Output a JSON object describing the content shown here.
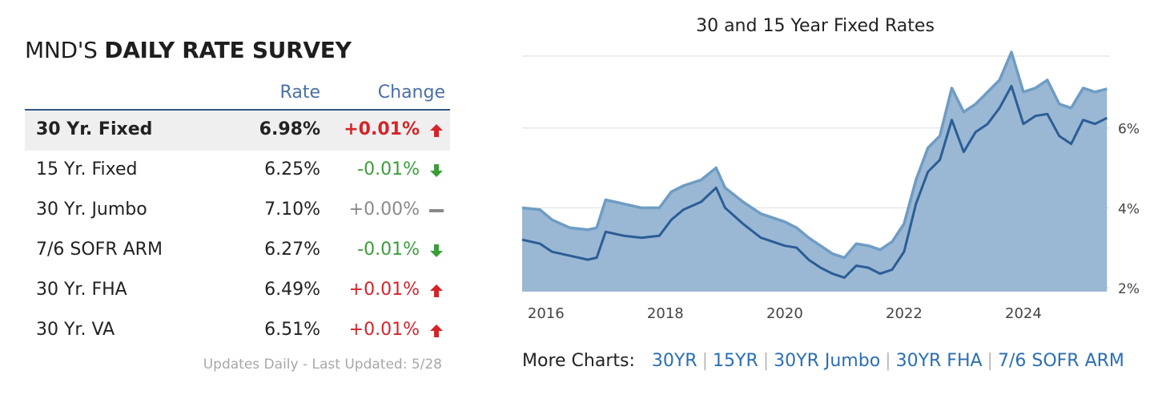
{
  "survey": {
    "title_prefix": "MND'S ",
    "title_bold": "DAILY RATE SURVEY",
    "col_rate": "Rate",
    "col_change": "Change",
    "rows": [
      {
        "name": "30 Yr. Fixed",
        "rate": "6.98%",
        "change": "+0.01%",
        "direction": "up"
      },
      {
        "name": "15 Yr. Fixed",
        "rate": "6.25%",
        "change": "-0.01%",
        "direction": "down"
      },
      {
        "name": "30 Yr. Jumbo",
        "rate": "7.10%",
        "change": "+0.00%",
        "direction": "flat"
      },
      {
        "name": "7/6 SOFR ARM",
        "rate": "6.27%",
        "change": "-0.01%",
        "direction": "down"
      },
      {
        "name": "30 Yr. FHA",
        "rate": "6.49%",
        "change": "+0.01%",
        "direction": "up"
      },
      {
        "name": "30 Yr. VA",
        "rate": "6.51%",
        "change": "+0.01%",
        "direction": "up"
      }
    ],
    "updated": "Updates Daily - Last Updated: 5/28"
  },
  "colors": {
    "up": "#d42429",
    "down": "#3a9d3a",
    "flat": "#8a8a8a",
    "header_accent": "#4a6fa8",
    "area_fill": "#9ab8d4",
    "line_30yr": "#6e9cc4",
    "line_15yr": "#2b5d96",
    "link": "#2a6fb5"
  },
  "icons": {
    "up": "arrow-up-icon",
    "down": "arrow-down-icon",
    "flat": "dash-icon"
  },
  "more_charts": {
    "label": "More Charts:",
    "links": [
      "30YR",
      "15YR",
      "30YR Jumbo",
      "30YR FHA",
      "7/6 SOFR ARM"
    ]
  },
  "chart_data": {
    "type": "area",
    "title": "30 and 15 Year Fixed Rates",
    "xlabel": "",
    "ylabel": "",
    "x_ticks": [
      2016,
      2018,
      2020,
      2022,
      2024
    ],
    "y_ticks": [
      "2%",
      "4%",
      "6%"
    ],
    "xlim": [
      2015.6,
      2025.45
    ],
    "ylim": [
      1.9,
      7.8
    ],
    "grid": true,
    "y_axis_side": "right",
    "series": [
      {
        "key": "30yr",
        "x": [
          2015.6,
          2015.9,
          2016.1,
          2016.4,
          2016.7,
          2016.85,
          2017.0,
          2017.3,
          2017.6,
          2017.9,
          2018.1,
          2018.3,
          2018.6,
          2018.85,
          2019.0,
          2019.3,
          2019.6,
          2019.8,
          2020.0,
          2020.2,
          2020.4,
          2020.6,
          2020.8,
          2021.0,
          2021.2,
          2021.4,
          2021.6,
          2021.8,
          2022.0,
          2022.2,
          2022.4,
          2022.6,
          2022.8,
          2023.0,
          2023.2,
          2023.4,
          2023.6,
          2023.8,
          2024.0,
          2024.2,
          2024.4,
          2024.6,
          2024.8,
          2025.0,
          2025.2,
          2025.4
        ],
        "values": [
          4.0,
          3.95,
          3.7,
          3.5,
          3.45,
          3.5,
          4.2,
          4.1,
          4.0,
          4.0,
          4.4,
          4.55,
          4.7,
          5.0,
          4.5,
          4.15,
          3.85,
          3.75,
          3.65,
          3.5,
          3.25,
          3.05,
          2.85,
          2.75,
          3.1,
          3.05,
          2.95,
          3.15,
          3.6,
          4.7,
          5.5,
          5.8,
          7.0,
          6.4,
          6.6,
          6.9,
          7.2,
          7.9,
          6.9,
          7.0,
          7.2,
          6.6,
          6.5,
          7.0,
          6.9,
          6.98
        ]
      },
      {
        "key": "15yr",
        "x": [
          2015.6,
          2015.9,
          2016.1,
          2016.4,
          2016.7,
          2016.85,
          2017.0,
          2017.3,
          2017.6,
          2017.9,
          2018.1,
          2018.3,
          2018.6,
          2018.85,
          2019.0,
          2019.3,
          2019.6,
          2019.8,
          2020.0,
          2020.2,
          2020.4,
          2020.6,
          2020.8,
          2021.0,
          2021.2,
          2021.4,
          2021.6,
          2021.8,
          2022.0,
          2022.2,
          2022.4,
          2022.6,
          2022.8,
          2023.0,
          2023.2,
          2023.4,
          2023.6,
          2023.8,
          2024.0,
          2024.2,
          2024.4,
          2024.6,
          2024.8,
          2025.0,
          2025.2,
          2025.4
        ],
        "values": [
          3.2,
          3.1,
          2.9,
          2.8,
          2.7,
          2.75,
          3.4,
          3.3,
          3.25,
          3.3,
          3.7,
          3.95,
          4.15,
          4.5,
          4.0,
          3.6,
          3.25,
          3.15,
          3.05,
          3.0,
          2.7,
          2.5,
          2.35,
          2.25,
          2.55,
          2.5,
          2.35,
          2.45,
          2.9,
          4.1,
          4.9,
          5.2,
          6.2,
          5.4,
          5.9,
          6.1,
          6.5,
          7.05,
          6.1,
          6.3,
          6.35,
          5.8,
          5.6,
          6.2,
          6.1,
          6.25
        ]
      }
    ]
  }
}
